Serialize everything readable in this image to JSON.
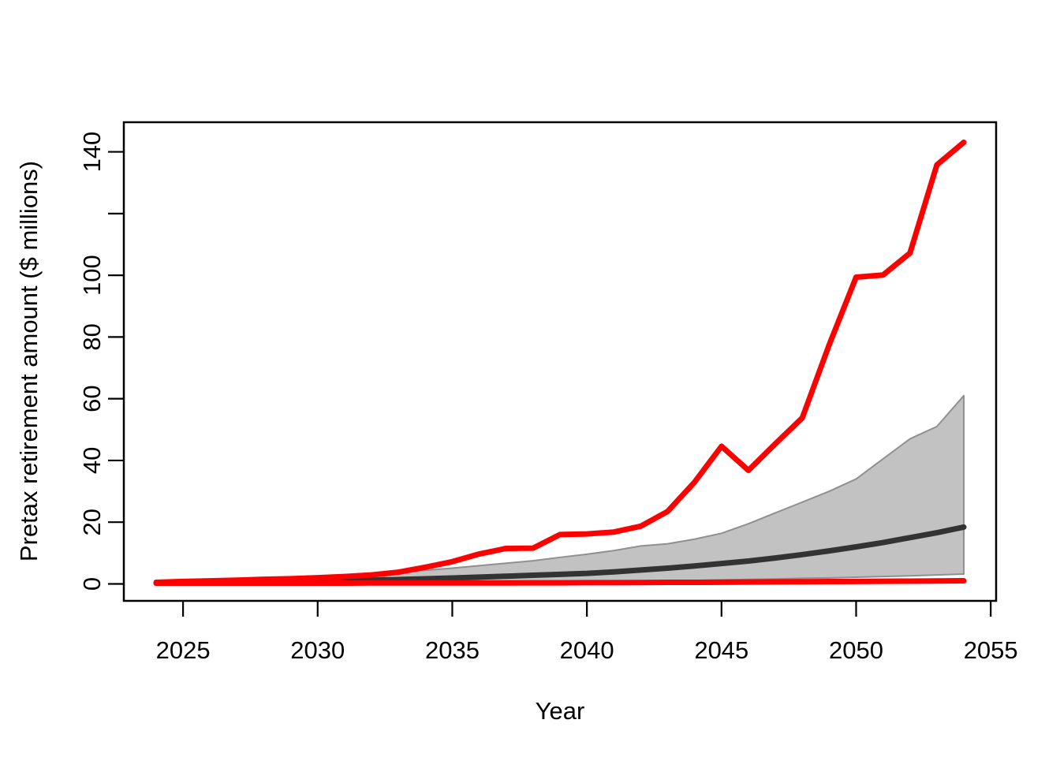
{
  "figure": {
    "background": "#ffffff",
    "description": "Base-R style line chart of simulated pretax retirement savings paths"
  },
  "chart_data": {
    "type": "line",
    "title": "",
    "xlabel": "Year",
    "ylabel": "Pretax retirement amount ($ millions)",
    "xlim": [
      2022.8,
      2055.2
    ],
    "ylim": [
      -5.5,
      149.6
    ],
    "grid": false,
    "legend": null,
    "x_ticks": [
      2025,
      2030,
      2035,
      2040,
      2045,
      2050,
      2055
    ],
    "x_tick_labels": [
      "2025",
      "2030",
      "2035",
      "2040",
      "2045",
      "2050",
      "2055"
    ],
    "y_ticks": [
      0,
      20,
      40,
      60,
      80,
      100,
      120,
      140
    ],
    "y_tick_labels": [
      "0",
      "20",
      "40",
      "60",
      "80",
      "100",
      "",
      "140"
    ],
    "years": [
      2024,
      2025,
      2026,
      2027,
      2028,
      2029,
      2030,
      2031,
      2032,
      2033,
      2034,
      2035,
      2036,
      2037,
      2038,
      2039,
      2040,
      2041,
      2042,
      2043,
      2044,
      2045,
      2046,
      2047,
      2048,
      2049,
      2050,
      2051,
      2052,
      2053,
      2054
    ],
    "band": {
      "name": "middle-range-band",
      "fill": "#c2c2c2",
      "edge": "#909090",
      "edge_width": 2,
      "upper": [
        0.3,
        0.5,
        0.7,
        1.0,
        1.3,
        1.7,
        2.1,
        2.6,
        3.2,
        3.8,
        4.4,
        5.1,
        5.9,
        6.7,
        7.5,
        8.6,
        9.6,
        10.8,
        12.3,
        13.0,
        14.5,
        16.4,
        19.5,
        23.0,
        26.5,
        30.0,
        34.0,
        40.5,
        47.0,
        51.0,
        61.0
      ],
      "lower": [
        0.2,
        0.22,
        0.25,
        0.28,
        0.3,
        0.33,
        0.36,
        0.4,
        0.44,
        0.48,
        0.52,
        0.57,
        0.62,
        0.67,
        0.72,
        0.78,
        0.84,
        0.9,
        0.97,
        1.05,
        1.15,
        1.3,
        1.45,
        1.6,
        1.8,
        1.95,
        2.15,
        2.4,
        2.6,
        2.9,
        3.2
      ]
    },
    "series": [
      {
        "name": "upper-red-line",
        "color": "#ff0000",
        "width": 7,
        "values": [
          0.5,
          0.8,
          1.0,
          1.2,
          1.5,
          1.7,
          2.0,
          2.4,
          2.9,
          3.8,
          5.4,
          7.2,
          9.7,
          11.5,
          11.6,
          16.0,
          16.2,
          16.8,
          18.7,
          23.5,
          33.0,
          44.6,
          36.8,
          45.4,
          53.8,
          77.5,
          99.4,
          100.1,
          107.2,
          135.8,
          143.1
        ]
      },
      {
        "name": "median-line",
        "color": "#333333",
        "width": 7,
        "values": [
          0.25,
          0.3,
          0.4,
          0.5,
          0.6,
          0.75,
          0.9,
          1.05,
          1.2,
          1.4,
          1.65,
          1.9,
          2.2,
          2.5,
          2.8,
          3.1,
          3.4,
          3.9,
          4.5,
          5.1,
          5.8,
          6.6,
          7.4,
          8.4,
          9.5,
          10.7,
          12.0,
          13.4,
          15.0,
          16.6,
          18.4
        ]
      },
      {
        "name": "lower-red-line",
        "color": "#ff0000",
        "width": 7,
        "values": [
          0.25,
          0.25,
          0.25,
          0.25,
          0.25,
          0.25,
          0.25,
          0.25,
          0.3,
          0.3,
          0.3,
          0.3,
          0.3,
          0.3,
          0.35,
          0.35,
          0.4,
          0.4,
          0.45,
          0.5,
          0.5,
          0.55,
          0.6,
          0.65,
          0.7,
          0.75,
          0.8,
          0.85,
          0.9,
          0.95,
          1.0
        ]
      }
    ],
    "style": {
      "box_color": "#000000",
      "box_width": 2.5,
      "tick_width": 2.2,
      "tick_length": 20,
      "tick_font_size": 31,
      "axis_label_font_size": 31
    }
  }
}
